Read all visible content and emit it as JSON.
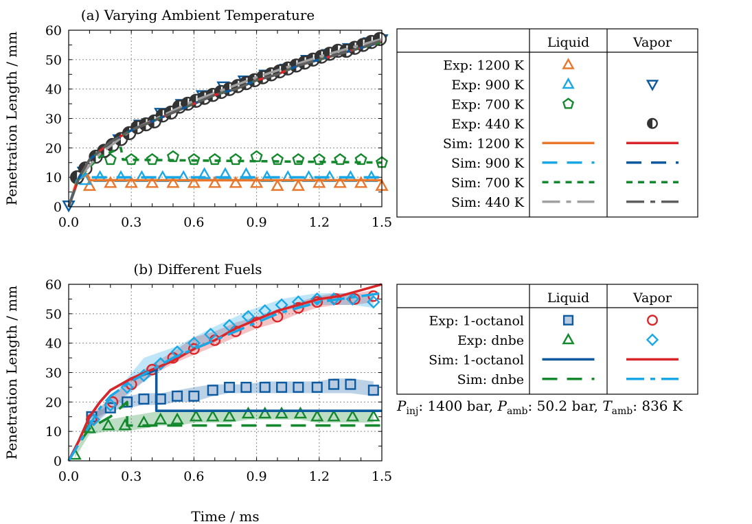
{
  "colors": {
    "orange": "#e8772e",
    "lightblue": "#1aa7e6",
    "green": "#13882c",
    "darkblue": "#0b5aa0",
    "red": "#d8262b",
    "gray": "#666666",
    "lightgray": "#a0a0a0",
    "darkgray": "#5e5e5e"
  },
  "chart_data": [
    {
      "type": "line",
      "title": "(a) Varying Ambient Temperature",
      "xlabel": "",
      "ylabel": "Penetration Length / mm",
      "xlim": [
        0,
        1.5
      ],
      "ylim": [
        0,
        60
      ],
      "xticks": [
        "0.0",
        "0.3",
        "0.6",
        "0.9",
        "1.2",
        "1.5"
      ],
      "yticks": [
        "0",
        "10",
        "20",
        "30",
        "40",
        "50",
        "60"
      ],
      "grid": true,
      "series": [
        {
          "name": "Exp: 1200 K",
          "phase": "Liquid",
          "kind": "markers",
          "marker": "triangle-up",
          "color": "orange",
          "x": [
            0.1,
            0.2,
            0.3,
            0.4,
            0.5,
            0.6,
            0.7,
            0.8,
            0.9,
            1.0,
            1.1,
            1.2,
            1.3,
            1.4,
            1.5
          ],
          "y": [
            7,
            8,
            8,
            8,
            8,
            8,
            8,
            8,
            8,
            7,
            7,
            8,
            8,
            8,
            7
          ]
        },
        {
          "name": "Exp: 900 K",
          "phase": "Liquid",
          "kind": "markers",
          "marker": "triangle-up",
          "color": "lightblue",
          "x": [
            0.08,
            0.15,
            0.25,
            0.35,
            0.45,
            0.55,
            0.65,
            0.75,
            0.85,
            0.95,
            1.05,
            1.15,
            1.25,
            1.35,
            1.45
          ],
          "y": [
            9,
            10,
            10,
            10,
            10,
            10,
            11,
            11,
            11,
            10,
            10,
            10,
            10,
            10,
            10
          ]
        },
        {
          "name": "Exp: 700 K",
          "phase": "Liquid",
          "kind": "markers",
          "marker": "pentagon",
          "color": "green",
          "x": [
            0.2,
            0.3,
            0.4,
            0.5,
            0.6,
            0.7,
            0.8,
            0.9,
            1.0,
            1.1,
            1.2,
            1.3,
            1.4,
            1.5
          ],
          "y": [
            16,
            16,
            16,
            17,
            16,
            16,
            16,
            17,
            16,
            16,
            16,
            16,
            16,
            15
          ]
        },
        {
          "name": "Exp: 900 K",
          "phase": "Vapor",
          "kind": "markers",
          "marker": "triangle-down",
          "color": "darkblue",
          "x": [
            0.0,
            0.07,
            0.14,
            0.24,
            0.34,
            0.44,
            0.54,
            0.64,
            0.74,
            0.84,
            0.94,
            1.04,
            1.14,
            1.24,
            1.34,
            1.44,
            1.5
          ],
          "y": [
            0.5,
            12,
            17,
            23,
            28,
            32,
            35,
            38,
            41,
            43,
            45,
            47,
            50,
            52,
            54,
            56,
            57
          ]
        },
        {
          "name": "Exp: 440 K",
          "phase": "Vapor",
          "kind": "markers",
          "marker": "circle-half",
          "color": "gray",
          "x": [
            0.04,
            0.08,
            0.13,
            0.17,
            0.21,
            0.25,
            0.29,
            0.33,
            0.37,
            0.41,
            0.45,
            0.49,
            0.53,
            0.57,
            0.61,
            0.65,
            0.69,
            0.73,
            0.77,
            0.81,
            0.85,
            0.89,
            0.93,
            0.97,
            1.01,
            1.05,
            1.09,
            1.13,
            1.17,
            1.21,
            1.25,
            1.29,
            1.33,
            1.37,
            1.41,
            1.45,
            1.49
          ],
          "y": [
            10,
            13,
            17,
            19,
            21,
            23,
            25,
            27,
            28,
            29,
            31,
            32,
            34,
            35,
            36,
            37,
            38,
            39,
            40,
            41,
            42,
            43,
            44,
            45,
            46,
            47,
            48,
            49,
            50,
            51,
            52,
            53,
            53,
            54,
            55,
            56,
            57
          ]
        },
        {
          "name": "Sim: 1200 K",
          "phase": "Liquid",
          "kind": "line",
          "dash": "solid",
          "color": "orange",
          "x": [
            0,
            0.04,
            0.09,
            0.1,
            1.5
          ],
          "y": [
            0,
            9,
            11,
            9,
            9
          ]
        },
        {
          "name": "Sim: 900 K",
          "phase": "Liquid",
          "kind": "line",
          "dash": "long",
          "color": "lightblue",
          "x": [
            0,
            0.04,
            0.1,
            0.11,
            1.5
          ],
          "y": [
            0,
            9,
            12,
            10,
            10
          ]
        },
        {
          "name": "Sim: 700 K",
          "phase": "Liquid",
          "kind": "line",
          "dash": "short",
          "color": "green",
          "x": [
            0,
            0.05,
            0.15,
            0.25,
            0.26,
            1.5
          ],
          "y": [
            0,
            10,
            17,
            20,
            16,
            15
          ]
        },
        {
          "name": "Sim: 440 K",
          "phase": "Liquid",
          "kind": "line",
          "dash": "longshort",
          "color": "lightgray",
          "x": [
            0,
            0.05,
            0.15,
            0.3,
            0.6,
            0.9,
            1.2,
            1.5
          ],
          "y": [
            0,
            10,
            18,
            26,
            36,
            44,
            51,
            57
          ]
        },
        {
          "name": "Sim: 1200 K",
          "phase": "Vapor",
          "kind": "line",
          "dash": "solid",
          "color": "red",
          "x": [
            0,
            0.05,
            0.1,
            0.15,
            0.2,
            0.3,
            0.4,
            0.5,
            0.6,
            0.7,
            0.8,
            0.9,
            1.0,
            1.1,
            1.2,
            1.3,
            1.4,
            1.5
          ],
          "y": [
            0,
            10,
            16,
            19,
            22,
            26,
            29,
            32,
            35,
            38,
            40,
            43,
            45,
            48,
            50,
            52,
            54,
            56
          ]
        },
        {
          "name": "Sim: 900 K",
          "phase": "Vapor",
          "kind": "line",
          "dash": "long",
          "color": "darkblue",
          "x": [
            0,
            0.05,
            0.1,
            0.15,
            0.2,
            0.3,
            0.4,
            0.5,
            0.6,
            0.7,
            0.8,
            0.9,
            1.0,
            1.1,
            1.2,
            1.3,
            1.4,
            1.5
          ],
          "y": [
            0,
            10,
            16,
            19,
            22,
            26,
            29,
            32,
            35,
            38,
            40,
            43,
            45,
            48,
            50,
            52,
            54,
            56
          ]
        },
        {
          "name": "Sim: 700 K",
          "phase": "Vapor",
          "kind": "line",
          "dash": "short",
          "color": "green",
          "x": [
            0,
            0.05,
            0.1,
            0.15,
            0.2,
            0.3,
            0.4,
            0.5,
            0.6,
            0.7,
            0.8,
            0.9,
            1.0,
            1.1,
            1.2,
            1.3,
            1.4,
            1.5
          ],
          "y": [
            0,
            10,
            16,
            19,
            22,
            26,
            29,
            32,
            35,
            38,
            40,
            43,
            45,
            48,
            50,
            52,
            54,
            56
          ]
        },
        {
          "name": "Sim: 440 K",
          "phase": "Vapor",
          "kind": "line",
          "dash": "longshort",
          "color": "darkgray",
          "x": [
            0,
            0.05,
            0.1,
            0.15,
            0.2,
            0.3,
            0.4,
            0.5,
            0.6,
            0.7,
            0.8,
            0.9,
            1.0,
            1.1,
            1.2,
            1.3,
            1.4,
            1.5
          ],
          "y": [
            0,
            10,
            16,
            19,
            22,
            26,
            29,
            32,
            35,
            38,
            40,
            43,
            45,
            48,
            50,
            52,
            54,
            56.5
          ]
        }
      ],
      "legend": {
        "position": "right",
        "headers": [
          "Liquid",
          "Vapor"
        ],
        "rows": [
          "Exp: 1200 K",
          "Exp: 900 K",
          "Exp: 700 K",
          "Exp: 440 K",
          "Sim: 1200 K",
          "Sim: 900 K",
          "Sim: 700 K",
          "Sim: 440 K"
        ]
      }
    },
    {
      "type": "line",
      "title": "(b) Different Fuels",
      "xlabel": "Time / ms",
      "ylabel": "Penetration Length / mm",
      "xlim": [
        0,
        1.5
      ],
      "ylim": [
        0,
        60
      ],
      "xticks": [
        "0.0",
        "0.3",
        "0.6",
        "0.9",
        "1.2",
        "1.5"
      ],
      "yticks": [
        "0",
        "10",
        "20",
        "30",
        "40",
        "50",
        "60"
      ],
      "grid": true,
      "series": [
        {
          "name": "Exp: 1-octanol",
          "phase": "Liquid",
          "kind": "markers",
          "marker": "square",
          "color": "darkblue",
          "x": [
            0.11,
            0.2,
            0.28,
            0.36,
            0.44,
            0.52,
            0.6,
            0.69,
            0.77,
            0.85,
            0.94,
            1.02,
            1.1,
            1.19,
            1.27,
            1.35,
            1.46
          ],
          "y": [
            15,
            18,
            20,
            21,
            21,
            22,
            22,
            24,
            25,
            25,
            25,
            25,
            25,
            25,
            26,
            26,
            24
          ],
          "band_low": [
            14,
            17,
            18,
            19,
            19,
            20,
            20,
            22,
            23,
            23,
            23,
            23,
            23,
            23,
            23,
            23,
            22
          ],
          "band_high": [
            16,
            19,
            22,
            23,
            23,
            24,
            25,
            26,
            26,
            26,
            27,
            27,
            27,
            27,
            28,
            28,
            27
          ]
        },
        {
          "name": "Exp: dnbe",
          "phase": "Liquid",
          "kind": "markers",
          "marker": "triangle-up",
          "color": "green",
          "x": [
            0.03,
            0.1,
            0.19,
            0.27,
            0.36,
            0.44,
            0.52,
            0.61,
            0.69,
            0.77,
            0.86,
            0.94,
            1.02,
            1.11,
            1.19,
            1.27,
            1.36,
            1.46
          ],
          "y": [
            2,
            11,
            12,
            12,
            13,
            14,
            14,
            15,
            15,
            15,
            16,
            16,
            16,
            16,
            15,
            15,
            15,
            15
          ],
          "band_low": [
            1,
            9,
            10,
            10,
            11,
            12,
            12,
            13,
            13,
            13,
            14,
            14,
            14,
            14,
            13,
            13,
            13,
            13
          ],
          "band_high": [
            3,
            13,
            14,
            15,
            16,
            17,
            17,
            17,
            17,
            17,
            17,
            17,
            17,
            17,
            17,
            17,
            17,
            17
          ]
        },
        {
          "name": "Exp: 1-octanol",
          "phase": "Vapor",
          "kind": "markers",
          "marker": "circle",
          "color": "red",
          "x": [
            0.11,
            0.21,
            0.3,
            0.4,
            0.5,
            0.6,
            0.7,
            0.8,
            0.9,
            1.0,
            1.1,
            1.19,
            1.28,
            1.37,
            1.46
          ],
          "y": [
            14,
            20,
            26,
            31,
            35,
            38,
            41,
            44,
            47,
            49,
            52,
            54,
            55,
            55,
            56
          ],
          "band_low": [
            12,
            18,
            24,
            29,
            33,
            36,
            39,
            42,
            45,
            47,
            50,
            52,
            53,
            53,
            54
          ],
          "band_high": [
            16,
            22,
            28,
            33,
            37,
            42,
            44,
            47,
            49,
            51,
            54,
            56,
            57,
            57,
            58
          ]
        },
        {
          "name": "Exp: dnbe",
          "phase": "Vapor",
          "kind": "markers",
          "marker": "diamond",
          "color": "lightblue",
          "x": [
            0.12,
            0.2,
            0.28,
            0.36,
            0.44,
            0.52,
            0.6,
            0.68,
            0.77,
            0.86,
            0.94,
            1.02,
            1.1,
            1.19,
            1.27,
            1.36,
            1.46
          ],
          "y": [
            14,
            19,
            25,
            29,
            33,
            37,
            40,
            43,
            46,
            49,
            51,
            53,
            54,
            55,
            55,
            55,
            54
          ],
          "band_low": [
            12,
            17,
            22,
            27,
            31,
            35,
            38,
            41,
            44,
            47,
            49,
            51,
            52,
            53,
            53,
            53,
            52
          ],
          "band_high": [
            16,
            21,
            28,
            35,
            37,
            39,
            42,
            45,
            48,
            51,
            53,
            55,
            56,
            57,
            57,
            57,
            56
          ]
        },
        {
          "name": "Sim: 1-octanol",
          "phase": "Liquid",
          "kind": "line",
          "dash": "solid",
          "color": "darkblue",
          "x": [
            0,
            0.05,
            0.1,
            0.15,
            0.2,
            0.25,
            0.3,
            0.35,
            0.42,
            0.42,
            1.5
          ],
          "y": [
            0,
            7,
            15,
            20,
            24,
            26,
            28,
            29,
            31,
            17,
            17
          ]
        },
        {
          "name": "Sim: dnbe",
          "phase": "Liquid",
          "kind": "line",
          "dash": "long",
          "color": "green",
          "x": [
            0,
            0.05,
            0.1,
            0.15,
            0.2,
            0.28,
            0.28,
            1.5
          ],
          "y": [
            0,
            6,
            11,
            13,
            15,
            20,
            12,
            12
          ]
        },
        {
          "name": "Sim: 1-octanol",
          "phase": "Vapor",
          "kind": "line",
          "dash": "solid",
          "color": "red",
          "x": [
            0,
            0.05,
            0.1,
            0.15,
            0.2,
            0.25,
            0.3,
            0.4,
            0.5,
            0.6,
            0.7,
            0.8,
            0.9,
            1.0,
            1.1,
            1.2,
            1.3,
            1.4,
            1.5
          ],
          "y": [
            0,
            7,
            15,
            20,
            24,
            26,
            28,
            31,
            34,
            38,
            41,
            45,
            48,
            51,
            53,
            55,
            56,
            58,
            60
          ]
        },
        {
          "name": "Sim: dnbe",
          "phase": "Vapor",
          "kind": "line",
          "dash": "longshort",
          "color": "lightblue",
          "x": [
            0,
            0.05,
            0.1,
            0.15,
            0.2,
            0.3,
            0.4,
            0.5,
            0.6,
            0.7,
            0.8,
            0.9,
            1.0,
            1.1,
            1.2,
            1.3,
            1.4,
            1.5
          ],
          "y": [
            0,
            6,
            12,
            18,
            22,
            27,
            31,
            35,
            38,
            41,
            44,
            47,
            50,
            52,
            54,
            55,
            56,
            57
          ]
        }
      ],
      "legend": {
        "position": "right",
        "headers": [
          "Liquid",
          "Vapor"
        ],
        "rows": [
          "Exp: 1-octanol",
          "Exp: dnbe",
          "Sim: 1-octanol",
          "Sim: dnbe"
        ]
      }
    }
  ]
}
